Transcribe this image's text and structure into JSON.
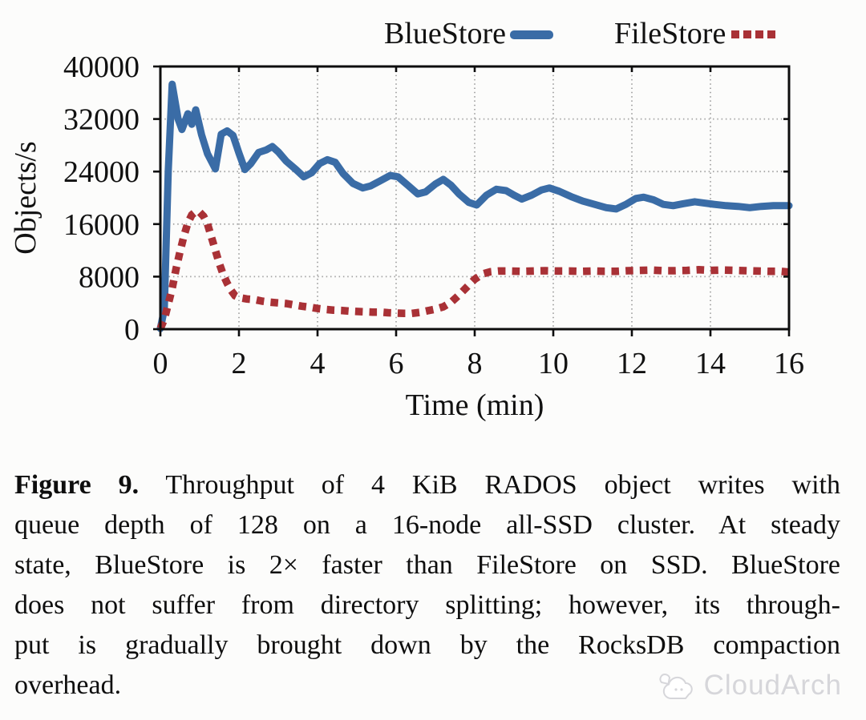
{
  "legend": {
    "note": "top legend for two series"
  },
  "chart_data": {
    "type": "line",
    "title": "",
    "xlabel": "Time (min)",
    "ylabel": "Objects/s",
    "xlim": [
      0,
      16
    ],
    "ylim": [
      0,
      40000
    ],
    "xticks": [
      0,
      2,
      4,
      6,
      8,
      10,
      12,
      14,
      16
    ],
    "yticks": [
      0,
      8000,
      16000,
      24000,
      32000,
      40000
    ],
    "grid": true,
    "legend_position": "top",
    "series": [
      {
        "name": "BlueStore",
        "color": "#3a6ca6",
        "style": "solid",
        "points": [
          [
            0,
            100
          ],
          [
            0.1,
            3000
          ],
          [
            0.2,
            24000
          ],
          [
            0.3,
            37300
          ],
          [
            0.45,
            32000
          ],
          [
            0.55,
            30400
          ],
          [
            0.7,
            32800
          ],
          [
            0.8,
            31200
          ],
          [
            0.9,
            33400
          ],
          [
            1.05,
            29600
          ],
          [
            1.2,
            26700
          ],
          [
            1.4,
            24400
          ],
          [
            1.55,
            29700
          ],
          [
            1.7,
            30200
          ],
          [
            1.85,
            29500
          ],
          [
            2.0,
            26800
          ],
          [
            2.15,
            24300
          ],
          [
            2.3,
            25200
          ],
          [
            2.5,
            26900
          ],
          [
            2.7,
            27300
          ],
          [
            2.85,
            27800
          ],
          [
            3.0,
            27000
          ],
          [
            3.2,
            25600
          ],
          [
            3.45,
            24300
          ],
          [
            3.65,
            23200
          ],
          [
            3.85,
            23800
          ],
          [
            4.05,
            25200
          ],
          [
            4.25,
            25800
          ],
          [
            4.45,
            25400
          ],
          [
            4.65,
            23700
          ],
          [
            4.9,
            22200
          ],
          [
            5.15,
            21500
          ],
          [
            5.35,
            21800
          ],
          [
            5.6,
            22600
          ],
          [
            5.85,
            23400
          ],
          [
            6.05,
            23200
          ],
          [
            6.3,
            21900
          ],
          [
            6.55,
            20600
          ],
          [
            6.75,
            20900
          ],
          [
            7.0,
            22100
          ],
          [
            7.2,
            22800
          ],
          [
            7.4,
            21900
          ],
          [
            7.6,
            20600
          ],
          [
            7.85,
            19300
          ],
          [
            8.05,
            18900
          ],
          [
            8.3,
            20400
          ],
          [
            8.55,
            21300
          ],
          [
            8.8,
            21100
          ],
          [
            9.0,
            20400
          ],
          [
            9.2,
            19800
          ],
          [
            9.45,
            20400
          ],
          [
            9.7,
            21200
          ],
          [
            9.9,
            21500
          ],
          [
            10.15,
            21000
          ],
          [
            10.45,
            20200
          ],
          [
            10.75,
            19500
          ],
          [
            11.05,
            19000
          ],
          [
            11.35,
            18500
          ],
          [
            11.6,
            18300
          ],
          [
            11.85,
            19000
          ],
          [
            12.1,
            19900
          ],
          [
            12.3,
            20100
          ],
          [
            12.55,
            19700
          ],
          [
            12.8,
            19000
          ],
          [
            13.05,
            18800
          ],
          [
            13.3,
            19100
          ],
          [
            13.6,
            19400
          ],
          [
            13.85,
            19200
          ],
          [
            14.1,
            19000
          ],
          [
            14.4,
            18800
          ],
          [
            14.7,
            18700
          ],
          [
            15.0,
            18500
          ],
          [
            15.3,
            18700
          ],
          [
            15.6,
            18800
          ],
          [
            16.0,
            18800
          ]
        ]
      },
      {
        "name": "FileStore",
        "color": "#a93136",
        "style": "dotted",
        "points": [
          [
            0,
            100
          ],
          [
            0.1,
            1500
          ],
          [
            0.2,
            3800
          ],
          [
            0.3,
            6200
          ],
          [
            0.4,
            9200
          ],
          [
            0.5,
            11800
          ],
          [
            0.6,
            14200
          ],
          [
            0.7,
            16200
          ],
          [
            0.8,
            17400
          ],
          [
            0.9,
            17900
          ],
          [
            1.0,
            17800
          ],
          [
            1.1,
            17200
          ],
          [
            1.2,
            16000
          ],
          [
            1.3,
            14000
          ],
          [
            1.4,
            12000
          ],
          [
            1.5,
            10000
          ],
          [
            1.6,
            8300
          ],
          [
            1.7,
            7000
          ],
          [
            1.8,
            5900
          ],
          [
            1.9,
            5100
          ],
          [
            2.0,
            4800
          ],
          [
            2.2,
            4600
          ],
          [
            2.4,
            4500
          ],
          [
            2.6,
            4250
          ],
          [
            2.8,
            4100
          ],
          [
            3.0,
            4000
          ],
          [
            3.2,
            3900
          ],
          [
            3.4,
            3700
          ],
          [
            3.6,
            3500
          ],
          [
            3.8,
            3350
          ],
          [
            4.0,
            3150
          ],
          [
            4.2,
            3000
          ],
          [
            4.4,
            2900
          ],
          [
            4.6,
            2850
          ],
          [
            4.8,
            2750
          ],
          [
            5.0,
            2700
          ],
          [
            5.2,
            2650
          ],
          [
            5.4,
            2600
          ],
          [
            5.6,
            2600
          ],
          [
            5.8,
            2500
          ],
          [
            6.0,
            2450
          ],
          [
            6.2,
            2400
          ],
          [
            6.4,
            2400
          ],
          [
            6.6,
            2550
          ],
          [
            6.8,
            2800
          ],
          [
            7.0,
            3050
          ],
          [
            7.2,
            3400
          ],
          [
            7.4,
            4100
          ],
          [
            7.6,
            5200
          ],
          [
            7.8,
            6400
          ],
          [
            8.0,
            7600
          ],
          [
            8.2,
            8400
          ],
          [
            8.4,
            8750
          ],
          [
            8.6,
            8850
          ],
          [
            8.9,
            8850
          ],
          [
            9.2,
            8800
          ],
          [
            9.5,
            8850
          ],
          [
            9.8,
            8900
          ],
          [
            10.1,
            8850
          ],
          [
            10.4,
            8850
          ],
          [
            10.7,
            8800
          ],
          [
            11.0,
            8850
          ],
          [
            11.3,
            8800
          ],
          [
            11.6,
            8800
          ],
          [
            11.9,
            8900
          ],
          [
            12.2,
            8950
          ],
          [
            12.5,
            9000
          ],
          [
            12.8,
            8900
          ],
          [
            13.1,
            8900
          ],
          [
            13.4,
            8950
          ],
          [
            13.7,
            9050
          ],
          [
            14.0,
            8950
          ],
          [
            14.3,
            9000
          ],
          [
            14.6,
            8950
          ],
          [
            14.9,
            8900
          ],
          [
            15.2,
            8850
          ],
          [
            15.5,
            8800
          ],
          [
            15.8,
            8800
          ],
          [
            16.0,
            8700
          ]
        ]
      }
    ]
  },
  "caption": {
    "label": "Figure 9.",
    "line1_rest": "Throughput of 4 KiB RADOS object writes with",
    "lines": [
      "queue depth of 128 on a 16-node all-SSD cluster. At steady",
      "state, BlueStore is 2× faster than FileStore on SSD. BlueStore",
      "does not suffer from directory splitting; however, its through-",
      "put is gradually brought down by the RocksDB compaction",
      "overhead."
    ]
  },
  "watermark": {
    "text": "CloudArch"
  },
  "colors": {
    "bluestore": "#3a6ca6",
    "filestore": "#a93136",
    "axis": "#0d0d0d",
    "grid": "#a3a3a3",
    "watermark": "#d6d6da"
  }
}
